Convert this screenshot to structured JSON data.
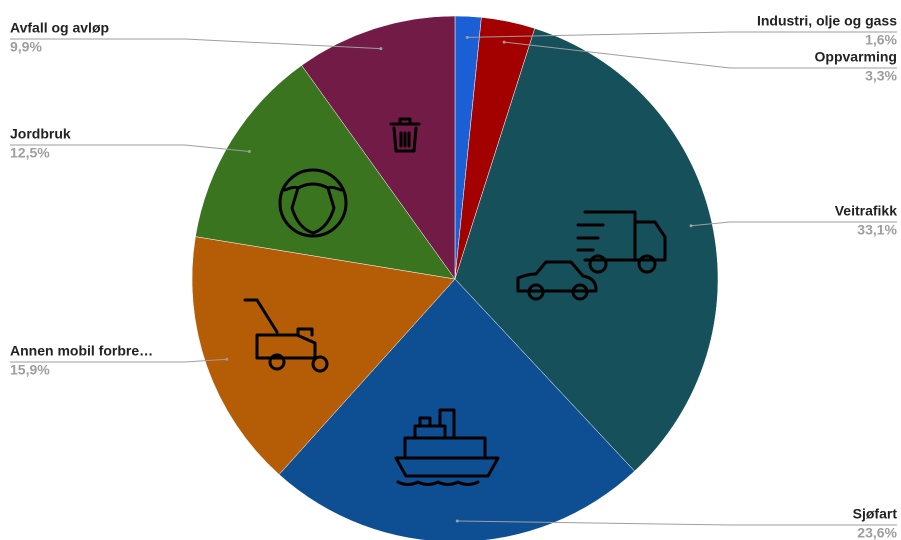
{
  "chart_data": {
    "type": "pie",
    "categories": [
      "Industri, olje og gass",
      "Oppvarming",
      "Veitrafikk",
      "Sjøfart",
      "Annen mobil forbre…",
      "Jordbruk",
      "Avfall og avløp"
    ],
    "values": [
      1.6,
      3.3,
      33.1,
      23.6,
      15.9,
      12.5,
      9.9
    ],
    "value_labels": [
      "1,6%",
      "3,3%",
      "33,1%",
      "23,6%",
      "15,9%",
      "12,5%",
      "9,9%"
    ],
    "colors": [
      "#1a5fd6",
      "#a30000",
      "#15505b",
      "#0e4f93",
      "#b55d06",
      "#3a741f",
      "#721b47"
    ]
  }
}
